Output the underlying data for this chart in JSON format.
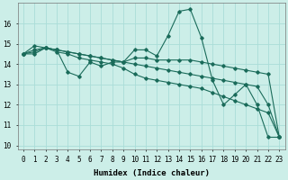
{
  "title": "",
  "xlabel": "Humidex (Indice chaleur)",
  "ylabel": "",
  "bg_color": "#cceee8",
  "grid_color": "#aaddd8",
  "line_color": "#1a6b5a",
  "x": [
    0,
    1,
    2,
    3,
    4,
    5,
    6,
    7,
    8,
    9,
    10,
    11,
    12,
    13,
    14,
    15,
    16,
    17,
    18,
    19,
    20,
    21,
    22,
    23
  ],
  "series": [
    [
      14.5,
      14.9,
      14.8,
      14.7,
      13.6,
      13.4,
      14.1,
      13.9,
      14.1,
      14.1,
      14.7,
      14.7,
      14.4,
      15.4,
      16.6,
      16.7,
      15.3,
      13.2,
      12.0,
      12.5,
      13.0,
      12.0,
      10.4,
      10.4
    ],
    [
      14.5,
      14.5,
      14.8,
      14.6,
      14.5,
      14.3,
      14.2,
      14.1,
      14.0,
      13.8,
      13.5,
      13.3,
      13.2,
      13.1,
      13.0,
      12.9,
      12.8,
      12.6,
      12.4,
      12.2,
      12.0,
      11.8,
      11.6,
      10.4
    ],
    [
      14.5,
      14.7,
      14.8,
      14.7,
      14.6,
      14.5,
      14.4,
      14.3,
      14.2,
      14.1,
      14.0,
      13.9,
      13.8,
      13.7,
      13.6,
      13.5,
      13.4,
      13.3,
      13.2,
      13.1,
      13.0,
      12.9,
      12.0,
      10.4
    ],
    [
      14.5,
      14.6,
      14.8,
      14.7,
      14.6,
      14.5,
      14.4,
      14.3,
      14.2,
      14.1,
      14.3,
      14.3,
      14.2,
      14.2,
      14.2,
      14.2,
      14.1,
      14.0,
      13.9,
      13.8,
      13.7,
      13.6,
      13.5,
      10.4
    ]
  ],
  "ylim_min": 9.8,
  "ylim_max": 17.0,
  "yticks": [
    10,
    11,
    12,
    13,
    14,
    15,
    16
  ],
  "xlim_min": -0.5,
  "xlim_max": 23.5,
  "xticks": [
    0,
    1,
    2,
    3,
    4,
    5,
    6,
    7,
    8,
    9,
    10,
    11,
    12,
    13,
    14,
    15,
    16,
    17,
    18,
    19,
    20,
    21,
    22,
    23
  ],
  "xtick_labels": [
    "0",
    "1",
    "2",
    "3",
    "4",
    "5",
    "6",
    "7",
    "8",
    "9",
    "10",
    "11",
    "12",
    "13",
    "14",
    "15",
    "16",
    "17",
    "18",
    "19",
    "20",
    "21",
    "22",
    "23"
  ],
  "marker": "D",
  "markersize": 1.8,
  "linewidth": 0.8,
  "fontsize_tick": 5.5,
  "fontsize_xlabel": 6.5
}
